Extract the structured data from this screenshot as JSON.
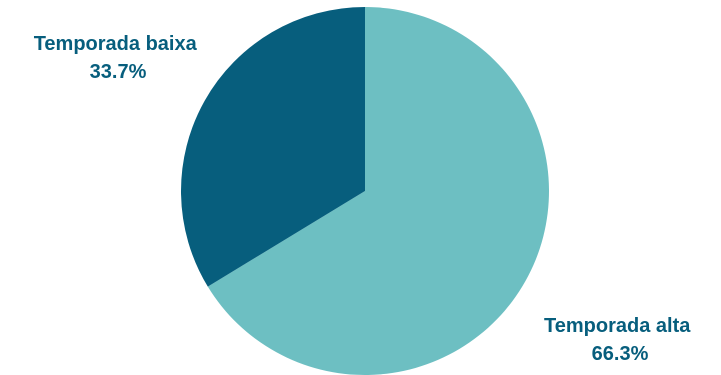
{
  "chart_data": {
    "type": "pie",
    "title": "",
    "slices": [
      {
        "label": "Temporada alta",
        "value": 66.3,
        "value_text": "66.3%",
        "color": "#6dbfc2"
      },
      {
        "label": "Temporada baixa",
        "value": 33.7,
        "value_text": "33.7%",
        "color": "#075e7d"
      }
    ],
    "start": "12 o'clock",
    "direction": "clockwise",
    "legend": "none",
    "label_color": "#075e7d"
  }
}
